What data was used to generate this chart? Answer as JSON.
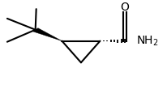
{
  "background": "#ffffff",
  "line_color": "#000000",
  "line_width": 1.5,
  "figsize": [
    2.06,
    1.1
  ],
  "dpi": 100,
  "font_size_label": 10
}
